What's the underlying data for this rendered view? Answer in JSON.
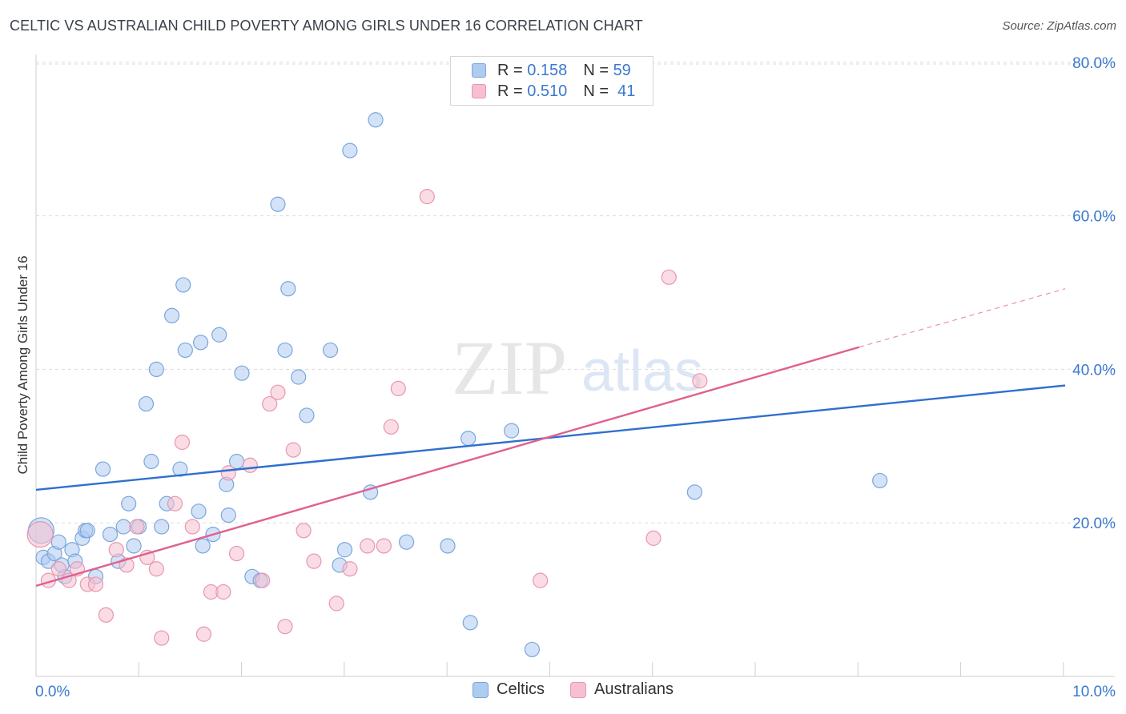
{
  "title": "CELTIC VS AUSTRALIAN CHILD POVERTY AMONG GIRLS UNDER 16 CORRELATION CHART",
  "source": "Source: ZipAtlas.com",
  "watermark": {
    "zip": "ZIP",
    "atlas": "atlas"
  },
  "legend": {
    "celtics": {
      "r_label": "R =",
      "r_value": "0.158",
      "n_label": "N =",
      "n_value": "59"
    },
    "australians": {
      "r_label": "R =",
      "r_value": "0.510",
      "n_label": "N =",
      "n_value": "41"
    }
  },
  "bottom_legend": {
    "celtics": "Celtics",
    "australians": "Australians"
  },
  "colors": {
    "celtics_fill": "#aecbf0",
    "celtics_stroke": "#7aa6dd",
    "celtics_line": "#2f6fce",
    "australians_fill": "#f6c0d0",
    "australians_stroke": "#e896b0",
    "australians_line": "#e0608e",
    "axis_label": "#3a78d0",
    "grid": "#dcdcdc"
  },
  "chart_data": {
    "type": "scatter",
    "title": "CELTIC VS AUSTRALIAN CHILD POVERTY AMONG GIRLS UNDER 16 CORRELATION CHART",
    "xlabel": "",
    "ylabel": "Child Poverty Among Girls Under 16",
    "xlim": [
      0,
      10
    ],
    "ylim": [
      0,
      80
    ],
    "x_tick_labels": [
      "0.0%",
      "10.0%"
    ],
    "y_ticks": [
      20,
      40,
      60,
      80
    ],
    "y_tick_labels": [
      "20.0%",
      "40.0%",
      "60.0%",
      "80.0%"
    ],
    "grid": true,
    "legend_position": "top-center",
    "series": [
      {
        "name": "Celtics",
        "r": 0.158,
        "n": 59,
        "trend": {
          "x": [
            0,
            10
          ],
          "y": [
            24.3,
            37.9
          ]
        },
        "points": [
          [
            0.05,
            19.0,
            "large"
          ],
          [
            0.07,
            15.5
          ],
          [
            0.12,
            15.0
          ],
          [
            0.18,
            16.0
          ],
          [
            0.22,
            17.5
          ],
          [
            0.28,
            13.0
          ],
          [
            0.35,
            16.5
          ],
          [
            0.38,
            15.0
          ],
          [
            0.45,
            18.0
          ],
          [
            0.48,
            19.0
          ],
          [
            0.5,
            19.0
          ],
          [
            0.58,
            13.0
          ],
          [
            0.65,
            27.0
          ],
          [
            0.72,
            18.5
          ],
          [
            0.8,
            15.0
          ],
          [
            0.85,
            19.5
          ],
          [
            0.9,
            22.5
          ],
          [
            0.95,
            17.0
          ],
          [
            1.0,
            19.5
          ],
          [
            1.07,
            35.5
          ],
          [
            1.12,
            28.0
          ],
          [
            1.17,
            40.0
          ],
          [
            1.22,
            19.5
          ],
          [
            1.27,
            22.5
          ],
          [
            1.32,
            47.0
          ],
          [
            1.4,
            27.0
          ],
          [
            1.43,
            51.0
          ],
          [
            1.45,
            42.5
          ],
          [
            1.58,
            21.5
          ],
          [
            1.6,
            43.5
          ],
          [
            1.62,
            17.0
          ],
          [
            1.72,
            18.5
          ],
          [
            1.78,
            44.5
          ],
          [
            1.85,
            25.0
          ],
          [
            1.87,
            21.0
          ],
          [
            1.95,
            28.0
          ],
          [
            2.0,
            39.5
          ],
          [
            2.1,
            13.0
          ],
          [
            2.18,
            12.5
          ],
          [
            2.35,
            61.5
          ],
          [
            2.42,
            42.5
          ],
          [
            2.45,
            50.5
          ],
          [
            2.55,
            39.0
          ],
          [
            2.63,
            34.0
          ],
          [
            2.86,
            42.5
          ],
          [
            2.95,
            14.5
          ],
          [
            3.0,
            16.5
          ],
          [
            3.05,
            68.5
          ],
          [
            3.25,
            24.0
          ],
          [
            3.3,
            72.5
          ],
          [
            3.6,
            17.5
          ],
          [
            4.0,
            17.0
          ],
          [
            4.2,
            31.0
          ],
          [
            4.22,
            7.0
          ],
          [
            4.62,
            32.0
          ],
          [
            4.82,
            3.5
          ],
          [
            6.4,
            24.0
          ],
          [
            8.2,
            25.5
          ],
          [
            0.25,
            14.5
          ]
        ]
      },
      {
        "name": "Australians",
        "r": 0.51,
        "n": 41,
        "trend": {
          "x": [
            0,
            8.0
          ],
          "y": [
            11.8,
            42.9
          ]
        },
        "trend_dashed": {
          "x": [
            8.0,
            10
          ],
          "y": [
            42.9,
            50.5
          ]
        },
        "points": [
          [
            0.04,
            18.5,
            "large"
          ],
          [
            0.12,
            12.5
          ],
          [
            0.22,
            14.0
          ],
          [
            0.32,
            12.5
          ],
          [
            0.4,
            14.0
          ],
          [
            0.5,
            12.0
          ],
          [
            0.58,
            12.0
          ],
          [
            0.68,
            8.0
          ],
          [
            0.78,
            16.5
          ],
          [
            0.88,
            14.5
          ],
          [
            0.98,
            19.5
          ],
          [
            1.08,
            15.5
          ],
          [
            1.17,
            14.0
          ],
          [
            1.22,
            5.0
          ],
          [
            1.35,
            22.5
          ],
          [
            1.42,
            30.5
          ],
          [
            1.52,
            19.5
          ],
          [
            1.63,
            5.5
          ],
          [
            1.7,
            11.0
          ],
          [
            1.82,
            11.0
          ],
          [
            1.87,
            26.5
          ],
          [
            1.95,
            16.0
          ],
          [
            2.08,
            27.5
          ],
          [
            2.2,
            12.5
          ],
          [
            2.27,
            35.5
          ],
          [
            2.35,
            37.0
          ],
          [
            2.42,
            6.5
          ],
          [
            2.5,
            29.5
          ],
          [
            2.6,
            19.0
          ],
          [
            2.7,
            15.0
          ],
          [
            2.92,
            9.5
          ],
          [
            3.05,
            14.0
          ],
          [
            3.22,
            17.0
          ],
          [
            3.38,
            17.0
          ],
          [
            3.45,
            32.5
          ],
          [
            3.52,
            37.5
          ],
          [
            3.8,
            62.5
          ],
          [
            4.9,
            12.5
          ],
          [
            6.0,
            18.0
          ],
          [
            6.15,
            52.0
          ],
          [
            6.45,
            38.5
          ]
        ]
      }
    ]
  }
}
